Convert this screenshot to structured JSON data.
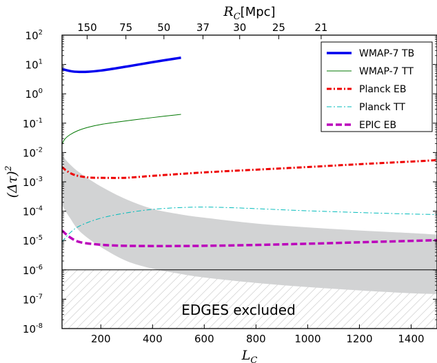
{
  "chart_data": {
    "type": "line",
    "xlabel": "L_C",
    "ylabel": "(Δτ)²",
    "top_xlabel": "R_C [Mpc]",
    "top_xlabel_unit": "[Mpc]",
    "xlim": [
      50,
      1500
    ],
    "ylim_log10": [
      -8,
      2
    ],
    "yscale": "log",
    "x_ticks": [
      200,
      400,
      600,
      800,
      1000,
      1200,
      1400
    ],
    "y_tick_exponents": [
      -8,
      -7,
      -6,
      -5,
      -4,
      -3,
      -2,
      -1,
      0,
      1,
      2
    ],
    "top_ticks": [
      {
        "label": "150",
        "x": 147
      },
      {
        "label": "75",
        "x": 297
      },
      {
        "label": "50",
        "x": 444
      },
      {
        "label": "37",
        "x": 595
      },
      {
        "label": "30",
        "x": 737
      },
      {
        "label": "25",
        "x": 888
      },
      {
        "label": "21",
        "x": 1052
      }
    ],
    "legend_position": "top-right",
    "series": [
      {
        "name": "WMAP-7 TB",
        "color": "#0000ee",
        "style": "solid",
        "width": 3.5,
        "x": [
          50,
          90,
          140,
          200,
          300,
          400,
          510
        ],
        "y": [
          7.0,
          5.8,
          5.6,
          6.2,
          8.5,
          12,
          17
        ]
      },
      {
        "name": "WMAP-7 TT",
        "color": "#007700",
        "style": "solid",
        "width": 1,
        "x": [
          50,
          60,
          80,
          110,
          150,
          200,
          300,
          400,
          510
        ],
        "y": [
          0.019,
          0.028,
          0.04,
          0.055,
          0.072,
          0.09,
          0.12,
          0.155,
          0.2
        ]
      },
      {
        "name": "Planck EB",
        "color": "#ee0000",
        "style": "dashdot",
        "width": 3,
        "x": [
          50,
          70,
          100,
          150,
          200,
          300,
          400,
          600,
          800,
          1000,
          1200,
          1400,
          1500
        ],
        "y": [
          0.0032,
          0.0023,
          0.0017,
          0.00142,
          0.00137,
          0.00138,
          0.0016,
          0.0021,
          0.0026,
          0.0032,
          0.004,
          0.0049,
          0.0055
        ]
      },
      {
        "name": "Planck TT",
        "color": "#00bbbb",
        "style": "dashdot",
        "width": 1,
        "x": [
          50,
          80,
          120,
          200,
          300,
          400,
          500,
          600,
          700,
          800,
          1000,
          1200,
          1400,
          1500
        ],
        "y": [
          9e-06,
          1.8e-05,
          3.2e-05,
          5.8e-05,
          8.8e-05,
          0.000115,
          0.000132,
          0.000138,
          0.000132,
          0.000122,
          0.000103,
          9e-05,
          8e-05,
          7.7e-05
        ]
      },
      {
        "name": "EPIC EB",
        "color": "#bb00bb",
        "style": "dashed",
        "width": 3.5,
        "x": [
          50,
          80,
          120,
          200,
          300,
          500,
          700,
          900,
          1100,
          1300,
          1500
        ],
        "y": [
          2.2e-05,
          1.3e-05,
          8.8e-06,
          7.2e-06,
          6.6e-06,
          6.5e-06,
          6.8e-06,
          7.4e-06,
          8.2e-06,
          9.2e-06,
          1.03e-05
        ]
      }
    ],
    "band": {
      "x": [
        50,
        80,
        120,
        200,
        300,
        400,
        500,
        600,
        800,
        1000,
        1200,
        1400,
        1500
      ],
      "upper": [
        0.008,
        0.004,
        0.002,
        0.0007,
        0.00025,
        0.00012,
        8e-05,
        6e-05,
        3.8e-05,
        2.8e-05,
        2.2e-05,
        1.8e-05,
        1.6e-05
      ],
      "lower": [
        0.00016,
        6e-05,
        2e-05,
        6e-06,
        2e-06,
        1.1e-06,
        7.5e-07,
        5.5e-07,
        3.6e-07,
        2.6e-07,
        2e-07,
        1.6e-07,
        1.5e-07
      ]
    },
    "hline_y": 1e-06,
    "annotation": "EDGES excluded"
  }
}
